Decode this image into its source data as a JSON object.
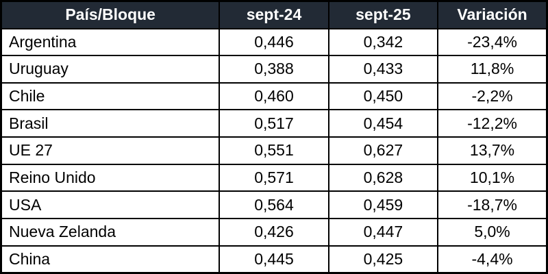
{
  "table": {
    "headers": [
      "País/Bloque",
      "sept-24",
      "sept-25",
      "Variación"
    ],
    "rows": [
      {
        "name": "Argentina",
        "sept24": "0,446",
        "sept25": "0,342",
        "variation": "-23,4%"
      },
      {
        "name": "Uruguay",
        "sept24": "0,388",
        "sept25": "0,433",
        "variation": "11,8%"
      },
      {
        "name": "Chile",
        "sept24": "0,460",
        "sept25": "0,450",
        "variation": "-2,2%"
      },
      {
        "name": "Brasil",
        "sept24": "0,517",
        "sept25": "0,454",
        "variation": "-12,2%"
      },
      {
        "name": "UE 27",
        "sept24": "0,551",
        "sept25": "0,627",
        "variation": "13,7%"
      },
      {
        "name": "Reino Unido",
        "sept24": "0,571",
        "sept25": "0,628",
        "variation": "10,1%"
      },
      {
        "name": "USA",
        "sept24": "0,564",
        "sept25": "0,459",
        "variation": "-18,7%"
      },
      {
        "name": "Nueva Zelanda",
        "sept24": "0,426",
        "sept25": "0,447",
        "variation": "5,0%"
      },
      {
        "name": "China",
        "sept24": "0,445",
        "sept25": "0,425",
        "variation": "-4,4%"
      }
    ]
  },
  "colors": {
    "header_bg": "#222A35",
    "header_text": "#FFFFFF",
    "border": "#000000",
    "row_bg": "#FFFFFF",
    "row_text": "#000000"
  },
  "chart_data": {
    "type": "table",
    "title": "",
    "columns": [
      "País/Bloque",
      "sept-24",
      "sept-25",
      "Variación"
    ],
    "rows": [
      [
        "Argentina",
        0.446,
        0.342,
        -23.4
      ],
      [
        "Uruguay",
        0.388,
        0.433,
        11.8
      ],
      [
        "Chile",
        0.46,
        0.45,
        -2.2
      ],
      [
        "Brasil",
        0.517,
        0.454,
        -12.2
      ],
      [
        "UE 27",
        0.551,
        0.627,
        13.7
      ],
      [
        "Reino Unido",
        0.571,
        0.628,
        10.1
      ],
      [
        "USA",
        0.564,
        0.459,
        -18.7
      ],
      [
        "Nueva Zelanda",
        0.426,
        0.447,
        5.0
      ],
      [
        "China",
        0.445,
        0.425,
        -4.4
      ]
    ],
    "notes": "Decimal comma formatting as displayed; Variación column shown as percent with one decimal."
  }
}
